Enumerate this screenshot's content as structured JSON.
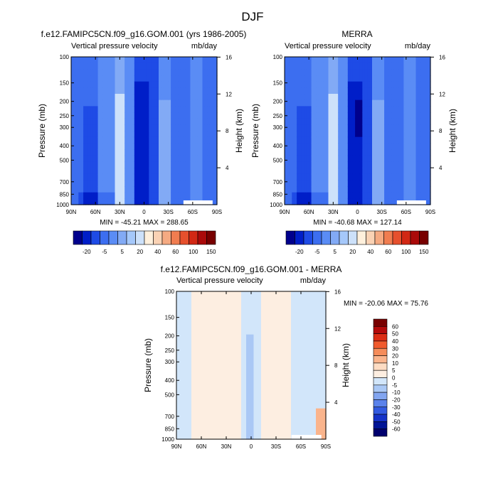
{
  "figure": {
    "title": "DJF"
  },
  "chart_data": [
    {
      "type": "heatmap",
      "title": "f.e12.FAMIPC5CN.f09_g16.GOM.001 (yrs 1986-2005)",
      "subtitle_left": "Vertical pressure velocity",
      "subtitle_right": "mb/day",
      "ylabel": "Pressure (mb)",
      "ylabel_right": "Height (km)",
      "y_ticks": [
        "100",
        "150",
        "200",
        "250",
        "300",
        "400",
        "500",
        "700",
        "850",
        "1000"
      ],
      "y_right_ticks": [
        "16",
        "12",
        "8",
        "4"
      ],
      "x_ticks": [
        "90N",
        "60N",
        "30N",
        "0",
        "30S",
        "60S",
        "90S"
      ],
      "stats": "MIN = -45.21  MAX = 288.65",
      "colorbar_labels": [
        "-20",
        "-5",
        "5",
        "20",
        "40",
        "60",
        "100",
        "150"
      ]
    },
    {
      "type": "heatmap",
      "title": "MERRA",
      "subtitle_left": "Vertical pressure velocity",
      "subtitle_right": "mb/day",
      "ylabel": "Pressure (mb)",
      "ylabel_right": "Height (km)",
      "y_ticks": [
        "100",
        "150",
        "200",
        "250",
        "300",
        "400",
        "500",
        "700",
        "850",
        "1000"
      ],
      "y_right_ticks": [
        "16",
        "12",
        "8",
        "4"
      ],
      "x_ticks": [
        "90N",
        "60N",
        "30N",
        "0",
        "30S",
        "60S",
        "90S"
      ],
      "stats": "MIN = -40.68  MAX = 127.14",
      "colorbar_labels": [
        "-20",
        "-5",
        "5",
        "20",
        "40",
        "60",
        "100",
        "150"
      ]
    },
    {
      "type": "heatmap",
      "title": "f.e12.FAMIPC5CN.f09_g16.GOM.001 - MERRA",
      "subtitle_left": "Vertical pressure velocity",
      "subtitle_right": "mb/day",
      "ylabel": "Pressure (mb)",
      "ylabel_right": "Height (km)",
      "y_ticks": [
        "100",
        "150",
        "200",
        "250",
        "300",
        "400",
        "500",
        "700",
        "850",
        "1000"
      ],
      "y_right_ticks": [
        "16",
        "12",
        "8",
        "4"
      ],
      "x_ticks": [
        "90N",
        "60N",
        "30N",
        "0",
        "30S",
        "60S",
        "90S"
      ],
      "stats": "MIN = -20.06  MAX =  75.76",
      "colorbar_labels": [
        "60",
        "50",
        "40",
        "30",
        "20",
        "10",
        "5",
        "0",
        "-5",
        "-10",
        "-20",
        "-30",
        "-40",
        "-50",
        "-60"
      ]
    }
  ],
  "colors": {
    "abs_scale": [
      "#00008c",
      "#001ec8",
      "#1e4be6",
      "#3c6ef0",
      "#5a8cf5",
      "#82aaf5",
      "#a5c8fa",
      "#cde1fa",
      "#fff0dc",
      "#fad2b4",
      "#f5aa82",
      "#f07d50",
      "#e6502d",
      "#d22814",
      "#aa0a0a",
      "#780000"
    ],
    "diff_scale": [
      "#780000",
      "#b40a0a",
      "#dc2d14",
      "#f05a2d",
      "#f58c5a",
      "#fab48c",
      "#fddcc3",
      "#fdeee1",
      "#d2e6fa",
      "#aac8f5",
      "#82a5f0",
      "#5a82eb",
      "#325ae1",
      "#1432c8",
      "#001496",
      "#00006e"
    ]
  }
}
